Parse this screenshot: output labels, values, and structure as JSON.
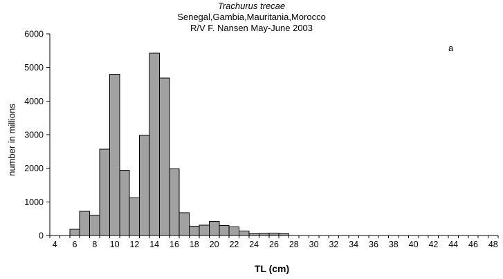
{
  "header": {
    "title": "Trachurus trecae",
    "subtitle1": "Senegal,Gambia,Mauritania,Morocco",
    "subtitle2": "R/V F. Nansen May-June 2003",
    "annotation": "a"
  },
  "chart_data": {
    "type": "bar",
    "title": "Trachurus trecae",
    "subtitle": "Senegal,Gambia,Mauritania,Morocco / R/V F. Nansen May-June 2003",
    "xlabel": "TL (cm)",
    "ylabel": "number in millions",
    "annotation": "a",
    "x_axis": {
      "min": 4,
      "max": 48,
      "label_step": 2,
      "minor_tick_step": 1
    },
    "ylim": [
      0,
      6000
    ],
    "y_ticks": [
      0,
      1000,
      2000,
      3000,
      4000,
      5000,
      6000
    ],
    "grid": false,
    "legend": "none",
    "bar_fill": "#a1a1a1",
    "bar_stroke": "#000000",
    "categories": [
      6,
      7,
      8,
      9,
      10,
      11,
      12,
      13,
      14,
      15,
      16,
      17,
      18,
      19,
      20,
      21,
      22,
      23,
      24,
      25,
      26,
      27
    ],
    "values": [
      180,
      720,
      610,
      2570,
      4800,
      1940,
      1120,
      2980,
      5420,
      4680,
      1980,
      680,
      280,
      310,
      420,
      300,
      260,
      130,
      50,
      60,
      70,
      50
    ]
  }
}
